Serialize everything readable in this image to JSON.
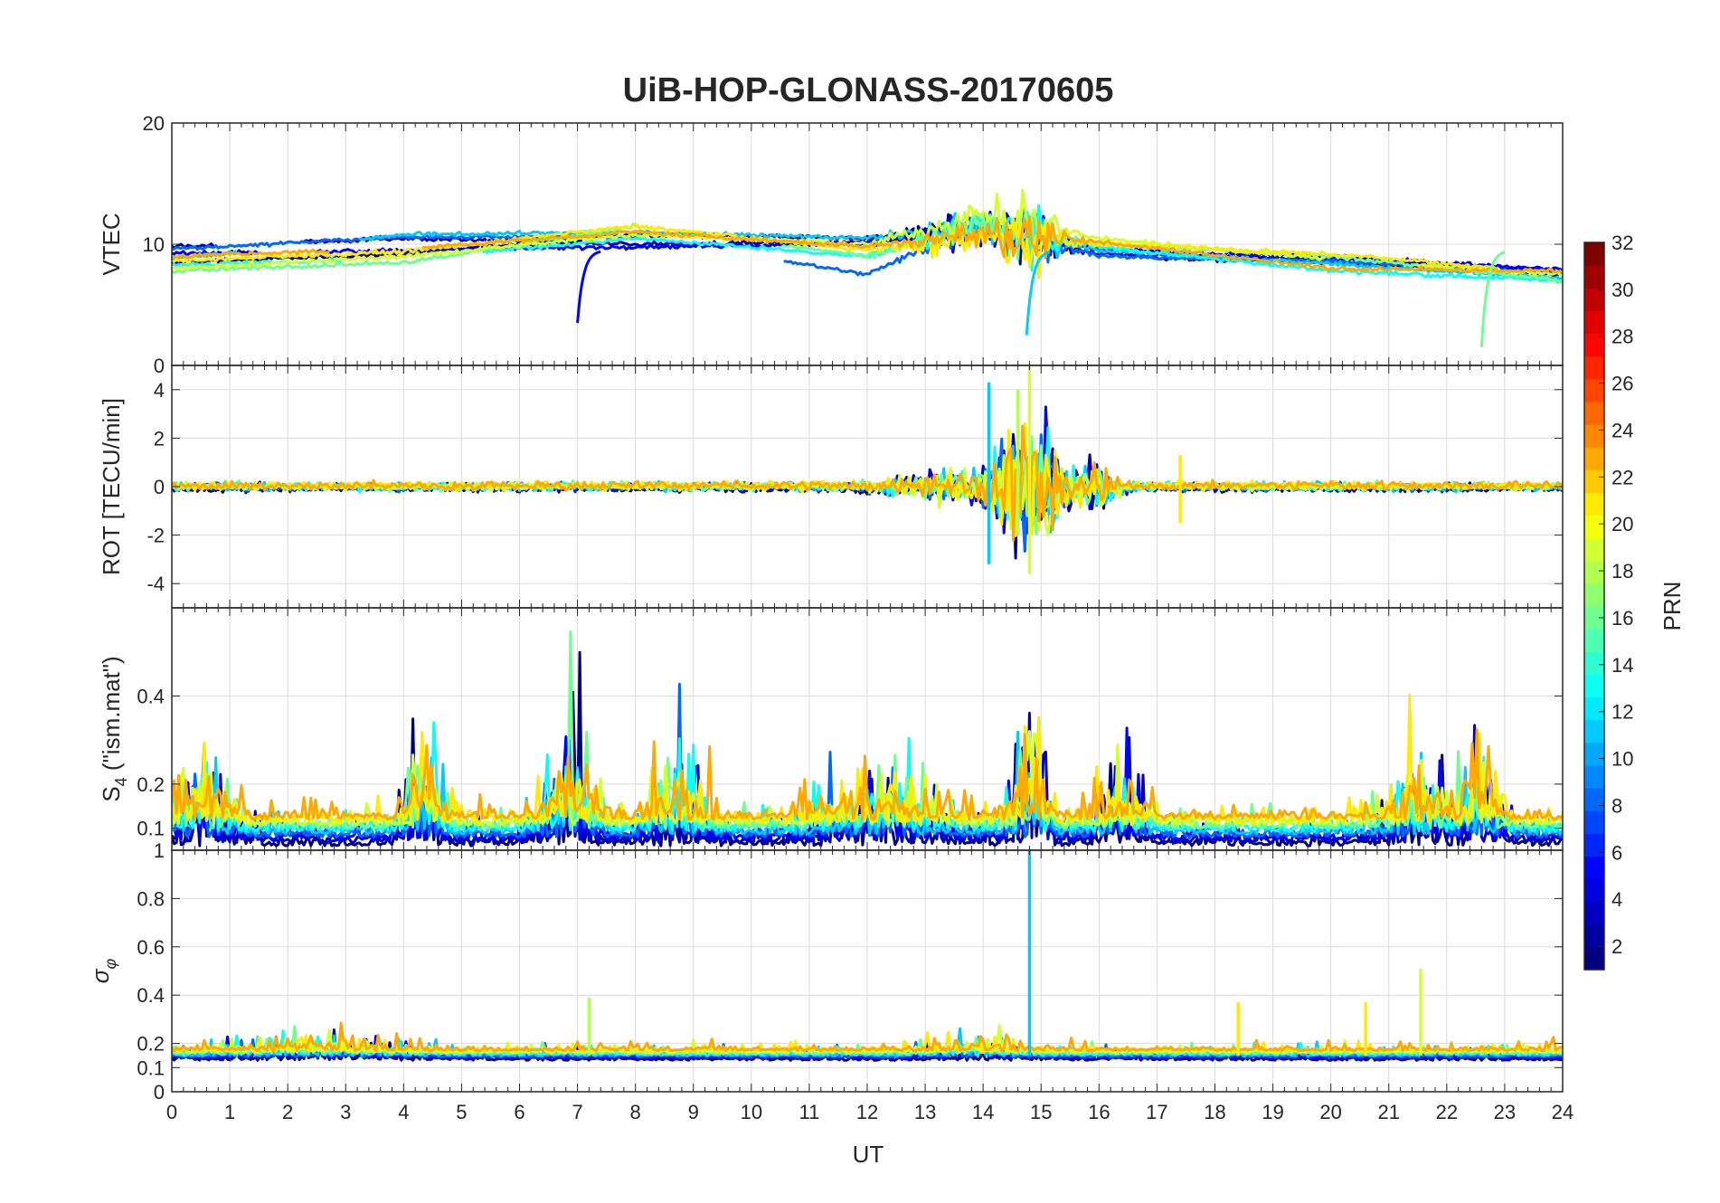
{
  "chart_data": {
    "type": "line",
    "title": "UiB-HOP-GLONASS-20170605",
    "xlabel": "UT",
    "xlim": [
      0,
      24
    ],
    "xticks": [
      "0",
      "1",
      "2",
      "3",
      "4",
      "5",
      "6",
      "7",
      "8",
      "9",
      "10",
      "11",
      "12",
      "13",
      "14",
      "15",
      "16",
      "17",
      "18",
      "19",
      "20",
      "21",
      "22",
      "23",
      "24"
    ],
    "grid": true,
    "colorbar": {
      "label": "PRN",
      "range": [
        1,
        32
      ],
      "colormap": "jet",
      "ticks": [
        "2",
        "4",
        "6",
        "8",
        "10",
        "12",
        "14",
        "16",
        "18",
        "20",
        "22",
        "24",
        "26",
        "28",
        "30",
        "32"
      ]
    },
    "panels": [
      {
        "id": "vtec",
        "ylabel": "VTEC",
        "ylim": [
          0,
          20
        ],
        "yticks": [
          "0",
          "10",
          "20"
        ],
        "ytick_values": [
          0,
          10,
          20
        ],
        "baseline": 9.5,
        "spread": 1.2,
        "noise": 0.25,
        "events": [
          {
            "x": 14.8,
            "width": 0.5,
            "amp": 3.5
          },
          {
            "x": 13.5,
            "width": 0.8,
            "amp": 1.5
          }
        ],
        "drops": [
          {
            "x": 7.0,
            "to": 3.5
          },
          {
            "x": 14.75,
            "to": 2.5
          },
          {
            "x": 22.6,
            "to": 1.5
          }
        ],
        "series": [
          {
            "prn": 1,
            "x": [
              0,
              4,
              8,
              12,
              14,
              16,
              20,
              24
            ],
            "y": [
              8.5,
              9.2,
              10.8,
              10.5,
              11.5,
              9.0,
              8.5,
              7.5
            ]
          },
          {
            "prn": 3,
            "x": [
              0,
              4,
              8,
              12,
              14,
              16,
              20,
              24
            ],
            "y": [
              9.8,
              10.5,
              10.0,
              10.2,
              11.2,
              9.2,
              8.8,
              7.8
            ]
          },
          {
            "prn": 5,
            "x": [
              0,
              4,
              8,
              12,
              14,
              16,
              20,
              24
            ],
            "y": [
              9.2,
              9.5,
              9.8,
              10.0,
              12.0,
              9.5,
              9.0,
              7.9
            ]
          },
          {
            "prn": 8,
            "x": [
              0,
              4,
              8,
              12,
              14,
              16,
              20,
              24
            ],
            "y": [
              9.6,
              10.6,
              10.6,
              7.5,
              12.0,
              9.0,
              8.6,
              7.6
            ]
          },
          {
            "prn": 11,
            "x": [
              0,
              4,
              8,
              12,
              14,
              16,
              20,
              24
            ],
            "y": [
              8.8,
              10.8,
              11.0,
              10.5,
              11.5,
              9.5,
              8.4,
              7.2
            ]
          },
          {
            "prn": 13,
            "x": [
              0,
              4,
              8,
              12,
              14,
              16,
              20,
              24
            ],
            "y": [
              8.3,
              8.8,
              10.5,
              9.0,
              11.8,
              9.8,
              7.8,
              7.0
            ]
          },
          {
            "prn": 16,
            "x": [
              0,
              4,
              8,
              12,
              14,
              16,
              20,
              24
            ],
            "y": [
              7.8,
              8.5,
              11.5,
              9.0,
              11.5,
              10.0,
              9.0,
              7.0
            ]
          },
          {
            "prn": 19,
            "x": [
              0,
              4,
              8,
              12,
              14,
              16,
              20,
              24
            ],
            "y": [
              8.0,
              9.0,
              10.8,
              10.0,
              12.5,
              10.5,
              8.8,
              7.5
            ]
          },
          {
            "prn": 21,
            "x": [
              0,
              4,
              8,
              12,
              14,
              16,
              20,
              24
            ],
            "y": [
              8.6,
              9.4,
              11.5,
              9.5,
              10.5,
              10.0,
              9.2,
              7.6
            ]
          },
          {
            "prn": 23,
            "x": [
              0,
              4,
              8,
              12,
              14,
              16,
              20,
              24
            ],
            "y": [
              9.0,
              9.6,
              11.0,
              9.8,
              11.0,
              10.2,
              8.0,
              7.8
            ]
          }
        ]
      },
      {
        "id": "rot",
        "ylabel": "ROT [TECU/min]",
        "ylim": [
          -5,
          5
        ],
        "yticks": [
          "-4",
          "-2",
          "0",
          "2",
          "4"
        ],
        "ytick_values": [
          -4,
          -2,
          0,
          2,
          4
        ],
        "baseline": 0.0,
        "spread": 0.05,
        "noise": 0.25,
        "events": [
          {
            "x": 14.8,
            "width": 0.6,
            "amp": 3.5
          },
          {
            "x": 13.3,
            "width": 0.9,
            "amp": 0.6
          },
          {
            "x": 16.0,
            "width": 0.3,
            "amp": 1.2
          }
        ],
        "spikes": [
          {
            "x": 14.1,
            "lo": -3.2,
            "hi": 4.3
          },
          {
            "x": 14.8,
            "lo": -3.6,
            "hi": 5.0
          },
          {
            "x": 14.6,
            "lo": -2.0,
            "hi": 4.0
          },
          {
            "x": 17.4,
            "lo": -1.5,
            "hi": 1.3
          }
        ],
        "series": [
          {
            "prn": 1
          },
          {
            "prn": 3
          },
          {
            "prn": 5
          },
          {
            "prn": 8
          },
          {
            "prn": 11
          },
          {
            "prn": 13
          },
          {
            "prn": 16
          },
          {
            "prn": 19
          },
          {
            "prn": 21
          },
          {
            "prn": 23
          }
        ]
      },
      {
        "id": "s4",
        "ylabel": "S4 (\"ism.mat\")",
        "ylabel_main": "S",
        "ylabel_sub": "4",
        "ylabel_rest": " (\"ism.mat\")",
        "ylim": [
          0.05,
          0.6
        ],
        "yticks": [
          "0.1",
          "0.2",
          "0.4"
        ],
        "ytick_values": [
          0.1,
          0.2,
          0.4
        ],
        "baseline": 0.09,
        "spread": 0.03,
        "noise": 0.05,
        "positive": true,
        "events": [
          {
            "x": 0.5,
            "width": 0.5,
            "amp": 0.25
          },
          {
            "x": 4.3,
            "width": 0.3,
            "amp": 0.3
          },
          {
            "x": 6.8,
            "width": 0.4,
            "amp": 0.35
          },
          {
            "x": 8.7,
            "width": 0.5,
            "amp": 0.2
          },
          {
            "x": 12.2,
            "width": 1.0,
            "amp": 0.18
          },
          {
            "x": 14.8,
            "width": 0.3,
            "amp": 0.4
          },
          {
            "x": 16.4,
            "width": 0.4,
            "amp": 0.2
          },
          {
            "x": 21.5,
            "width": 0.5,
            "amp": 0.2
          },
          {
            "x": 22.6,
            "width": 0.3,
            "amp": 0.35
          }
        ],
        "series": [
          {
            "prn": 1
          },
          {
            "prn": 3
          },
          {
            "prn": 5
          },
          {
            "prn": 8
          },
          {
            "prn": 11
          },
          {
            "prn": 13
          },
          {
            "prn": 16
          },
          {
            "prn": 19
          },
          {
            "prn": 21
          },
          {
            "prn": 23
          }
        ]
      },
      {
        "id": "sigma",
        "ylabel": "σφ",
        "ylabel_main": "σ",
        "ylabel_sub": "φ",
        "ylim": [
          0,
          1
        ],
        "yticks": [
          "0",
          "0.1",
          "0.2",
          "0.4",
          "0.6",
          "0.8",
          "1"
        ],
        "ytick_values": [
          0,
          0.1,
          0.2,
          0.4,
          0.6,
          0.8,
          1
        ],
        "baseline": 0.15,
        "spread": 0.02,
        "noise": 0.04,
        "positive": true,
        "events": [
          {
            "x": 2.5,
            "width": 1.5,
            "amp": 0.07
          },
          {
            "x": 13.8,
            "width": 0.8,
            "amp": 0.06
          }
        ],
        "spikes": [
          {
            "x": 14.8,
            "lo": 0.15,
            "hi": 1.0
          },
          {
            "x": 21.55,
            "lo": 0.15,
            "hi": 0.51
          },
          {
            "x": 7.2,
            "lo": 0.15,
            "hi": 0.39
          },
          {
            "x": 18.4,
            "lo": 0.15,
            "hi": 0.37
          },
          {
            "x": 20.6,
            "lo": 0.15,
            "hi": 0.37
          }
        ],
        "series": [
          {
            "prn": 1
          },
          {
            "prn": 3
          },
          {
            "prn": 5
          },
          {
            "prn": 8
          },
          {
            "prn": 11
          },
          {
            "prn": 13
          },
          {
            "prn": 16
          },
          {
            "prn": 19
          },
          {
            "prn": 21
          },
          {
            "prn": 23
          }
        ]
      }
    ]
  },
  "colors": {
    "axis": "#262626",
    "grid": "#dcdcdc",
    "background": "#ffffff"
  }
}
